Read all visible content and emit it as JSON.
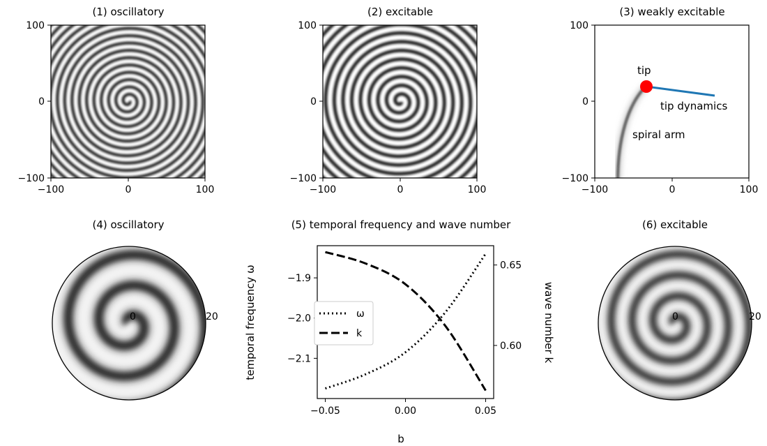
{
  "figure": {
    "panels": [
      {
        "id": 1,
        "title": "(1) oscillatory",
        "xticks": [
          "−100",
          "0",
          "100"
        ],
        "yticks": [
          "100",
          "0",
          "−100"
        ]
      },
      {
        "id": 2,
        "title": "(2) excitable",
        "xticks": [
          "−100",
          "0",
          "100"
        ],
        "yticks": [
          "100",
          "0",
          "−100"
        ]
      },
      {
        "id": 3,
        "title": "(3) weakly excitable",
        "xticks": [
          "−100",
          "0",
          "100"
        ],
        "yticks": [
          "100",
          "0",
          "−100"
        ],
        "annotations": {
          "tip": "tip",
          "tip_dynamics": "tip dynamics",
          "spiral_arm": "spiral arm"
        },
        "tip_color": "#ff0000",
        "dynamics_color": "#1f77b4"
      },
      {
        "id": 4,
        "title": "(4) oscillatory",
        "radial_labels": [
          "0",
          "20"
        ]
      },
      {
        "id": 5,
        "title": "(5) temporal frequency and wave number"
      },
      {
        "id": 6,
        "title": "(6) excitable",
        "radial_labels": [
          "0",
          "20"
        ]
      }
    ]
  },
  "chart_data": {
    "type": "line",
    "title": "(5) temporal frequency and wave number",
    "xlabel": "b",
    "ylabel_left": "temporal frequency ω",
    "ylabel_right": "wave number k",
    "xlim": [
      -0.055,
      0.055
    ],
    "ylim_left": [
      -2.2,
      -1.82
    ],
    "ylim_right": [
      0.567,
      0.662
    ],
    "xticks": [
      "−0.05",
      "0.00",
      "0.05"
    ],
    "yticks_left": [
      "−1.9",
      "−2.0",
      "−2.1"
    ],
    "yticks_right": [
      "0.65",
      "0.60"
    ],
    "legend": {
      "position": "center-left",
      "entries": [
        "ω",
        "k"
      ]
    },
    "series": [
      {
        "name": "ω",
        "axis": "left",
        "style": "dotted",
        "x": [
          -0.05,
          -0.025,
          0.0,
          0.025,
          0.05
        ],
        "y": [
          -2.175,
          -2.14,
          -2.085,
          -1.985,
          -1.84
        ]
      },
      {
        "name": "k",
        "axis": "right",
        "style": "dashed",
        "x": [
          -0.05,
          -0.025,
          0.0,
          0.025,
          0.05
        ],
        "y": [
          0.658,
          0.651,
          0.638,
          0.612,
          0.572
        ]
      }
    ]
  }
}
